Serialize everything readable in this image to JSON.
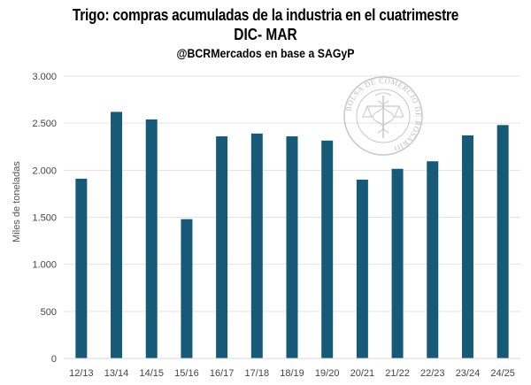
{
  "chart_data": {
    "type": "bar",
    "title": "Trigo: compras acumuladas de la industria en el cuatrimestre",
    "title_line2": "DIC- MAR",
    "subtitle": "@BCRMercados en base a SAGyP",
    "ylabel": "Miles de toneladas",
    "xlabel": "",
    "ylim": [
      0,
      3000
    ],
    "yticks": [
      0,
      500,
      1000,
      1500,
      2000,
      2500,
      3000
    ],
    "ytick_labels": [
      "0",
      "500",
      "1.000",
      "1.500",
      "2.000",
      "2.500",
      "3.000"
    ],
    "categories": [
      "12/13",
      "13/14",
      "14/15",
      "15/16",
      "16/17",
      "17/18",
      "18/19",
      "19/20",
      "20/21",
      "21/22",
      "22/23",
      "23/24",
      "24/25"
    ],
    "values": [
      1910,
      2620,
      2540,
      1480,
      2360,
      2390,
      2360,
      2315,
      1900,
      2015,
      2095,
      2370,
      2480
    ],
    "bar_color": "#165A78",
    "grid": true
  },
  "watermark": {
    "text_arc": "BOLSA DE COMERCIO DE ROSARIO",
    "color": "#9a9a9a"
  }
}
